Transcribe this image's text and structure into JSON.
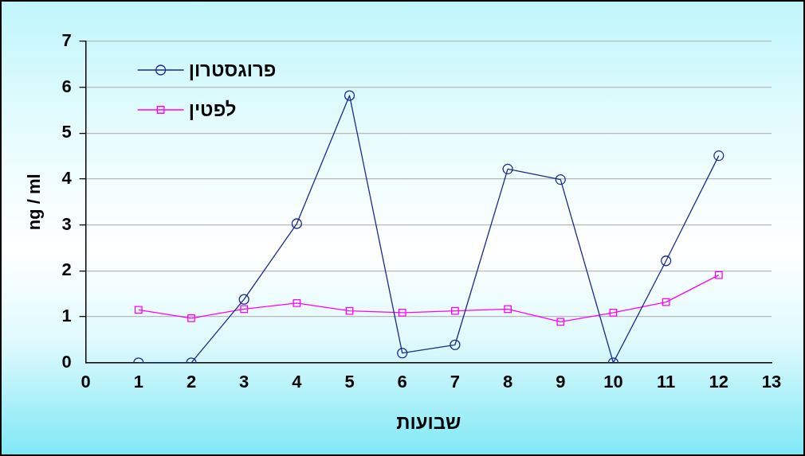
{
  "chart_data": {
    "type": "line",
    "xlabel": "שבועות",
    "ylabel": "ng / ml",
    "x": [
      1,
      2,
      3,
      4,
      5,
      6,
      7,
      8,
      9,
      10,
      11,
      12
    ],
    "series": [
      {
        "name": "פרוגסטרון",
        "color": "#1a2a8c",
        "marker": "circle",
        "values": [
          0,
          0,
          1.38,
          3.03,
          5.82,
          0.21,
          0.39,
          4.22,
          3.99,
          0,
          2.22,
          4.51
        ]
      },
      {
        "name": "לפטין",
        "color": "#ff00ff",
        "marker": "square",
        "values": [
          1.15,
          0.97,
          1.17,
          1.3,
          1.13,
          1.09,
          1.13,
          1.17,
          0.89,
          1.09,
          1.32,
          1.91
        ]
      }
    ],
    "xlim": [
      0,
      13
    ],
    "xticks": [
      0,
      1,
      2,
      3,
      4,
      5,
      6,
      7,
      8,
      9,
      10,
      11,
      12,
      13
    ],
    "ylim": [
      0,
      7
    ],
    "yticks": [
      0,
      1,
      2,
      3,
      4,
      5,
      6,
      7
    ],
    "grid": "y",
    "legend": "top left",
    "line_style": "solid"
  }
}
